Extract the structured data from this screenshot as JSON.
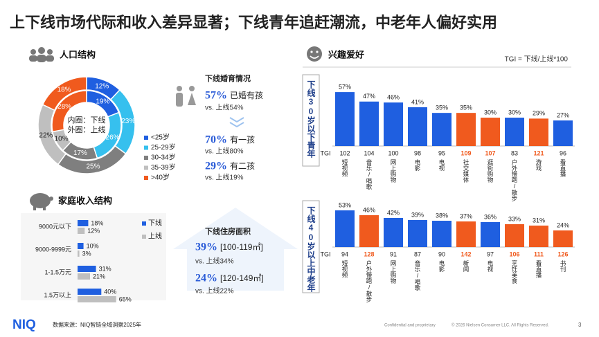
{
  "title": "上下线市场代际和收入差异显著；下线青年追赶潮流，中老年人偏好实用",
  "population": {
    "heading": "人口结构"
  },
  "marriage": {
    "heading": "下线婚育情况",
    "items": [
      {
        "value": "57%",
        "text": "已婚有孩",
        "compare": "vs. 上线54%"
      },
      {
        "value": "70%",
        "text": "有一孩",
        "compare": "vs. 上线80%"
      },
      {
        "value": "29%",
        "text": "有二孩",
        "compare": "vs. 上线19%"
      }
    ]
  },
  "income": {
    "heading": "家庭收入结构"
  },
  "housing": {
    "heading": "下线住房面积",
    "items": [
      {
        "value": "39%",
        "text": "[100-119㎡]",
        "compare": "vs. 上线34%"
      },
      {
        "value": "24%",
        "text": "[120-149㎡]",
        "compare": "vs. 上线22%"
      }
    ]
  },
  "interests": {
    "heading": "兴趣爱好",
    "formula": "TGI = 下线/上线*100"
  },
  "chart_data": [
    {
      "type": "donut",
      "inner_label": "内圈：下线",
      "outer_label": "外圈：上线",
      "categories": [
        "<25岁",
        "25-29岁",
        "30-34岁",
        "35-39岁",
        ">40岁"
      ],
      "colors": [
        "#1f5fe0",
        "#36c0ee",
        "#7f7f7f",
        "#bfbfbf",
        "#f05a1e"
      ],
      "series": [
        {
          "ring": "outer",
          "values": [
            12,
            23,
            25,
            22,
            18
          ],
          "value_labels": [
            "12%",
            "23%",
            "25%",
            "22%",
            "18%"
          ]
        },
        {
          "ring": "inner",
          "values": [
            19,
            26,
            17,
            10,
            28
          ],
          "value_labels": [
            "19%",
            "26%",
            "17%",
            "10%",
            "28%"
          ]
        }
      ]
    },
    {
      "type": "hbar",
      "categories": [
        "9000元以下",
        "9000-9999元",
        "1-1.5万元",
        "1.5万以上"
      ],
      "xlim": [
        0,
        70
      ],
      "series": [
        {
          "name": "下线",
          "color": "#1f5fe0",
          "values": [
            18,
            10,
            31,
            40
          ],
          "value_labels": [
            "18%",
            "10%",
            "31%",
            "40%"
          ]
        },
        {
          "name": "上线",
          "color": "#bfbfbf",
          "values": [
            12,
            3,
            21,
            65
          ],
          "value_labels": [
            "12%",
            "3%",
            "21%",
            "65%"
          ]
        }
      ]
    },
    {
      "type": "bar",
      "row_label": "下线30岁以下青年",
      "tgi_label": "TGI",
      "ylim": [
        0,
        60
      ],
      "categories": [
        "短视频",
        "音乐/唱歌",
        "网上购物",
        "电影",
        "电视",
        "社交媒体",
        "逛街购物",
        "户外慢跑/散步",
        "游戏",
        "看直播"
      ],
      "values": [
        57,
        47,
        46,
        41,
        35,
        35,
        30,
        30,
        29,
        27
      ],
      "value_labels": [
        "57%",
        "47%",
        "46%",
        "41%",
        "35%",
        "35%",
        "30%",
        "30%",
        "29%",
        "27%"
      ],
      "tgi": [
        102,
        104,
        100,
        98,
        95,
        109,
        107,
        83,
        121,
        96
      ],
      "colors": [
        "#1f5fe0",
        "#1f5fe0",
        "#1f5fe0",
        "#1f5fe0",
        "#1f5fe0",
        "#f05a1e",
        "#f05a1e",
        "#1f5fe0",
        "#f05a1e",
        "#1f5fe0"
      ]
    },
    {
      "type": "bar",
      "row_label": "下线40岁以上中老年",
      "tgi_label": "TGI",
      "ylim": [
        0,
        60
      ],
      "categories": [
        "短视频",
        "户外慢跑/散步",
        "网上购物",
        "音乐/唱歌",
        "电影",
        "新闻",
        "电视",
        "烹饪美食",
        "看直播",
        "书刊"
      ],
      "values": [
        53,
        46,
        42,
        39,
        38,
        37,
        36,
        33,
        31,
        24
      ],
      "value_labels": [
        "53%",
        "46%",
        "42%",
        "39%",
        "38%",
        "37%",
        "36%",
        "33%",
        "31%",
        "24%"
      ],
      "tgi": [
        94,
        128,
        91,
        87,
        90,
        142,
        97,
        106,
        111,
        126
      ],
      "colors": [
        "#1f5fe0",
        "#f05a1e",
        "#1f5fe0",
        "#1f5fe0",
        "#1f5fe0",
        "#f05a1e",
        "#1f5fe0",
        "#f05a1e",
        "#f05a1e",
        "#f05a1e"
      ]
    }
  ],
  "footer": {
    "logo": "NIQ",
    "source": "数据来源：NIQ智链全域洞察2025年",
    "confidential": "Confidential and proprietary",
    "copyright": "© 2026 Nielsen Consumer LLC. All Rights Reserved.",
    "page": "3"
  }
}
